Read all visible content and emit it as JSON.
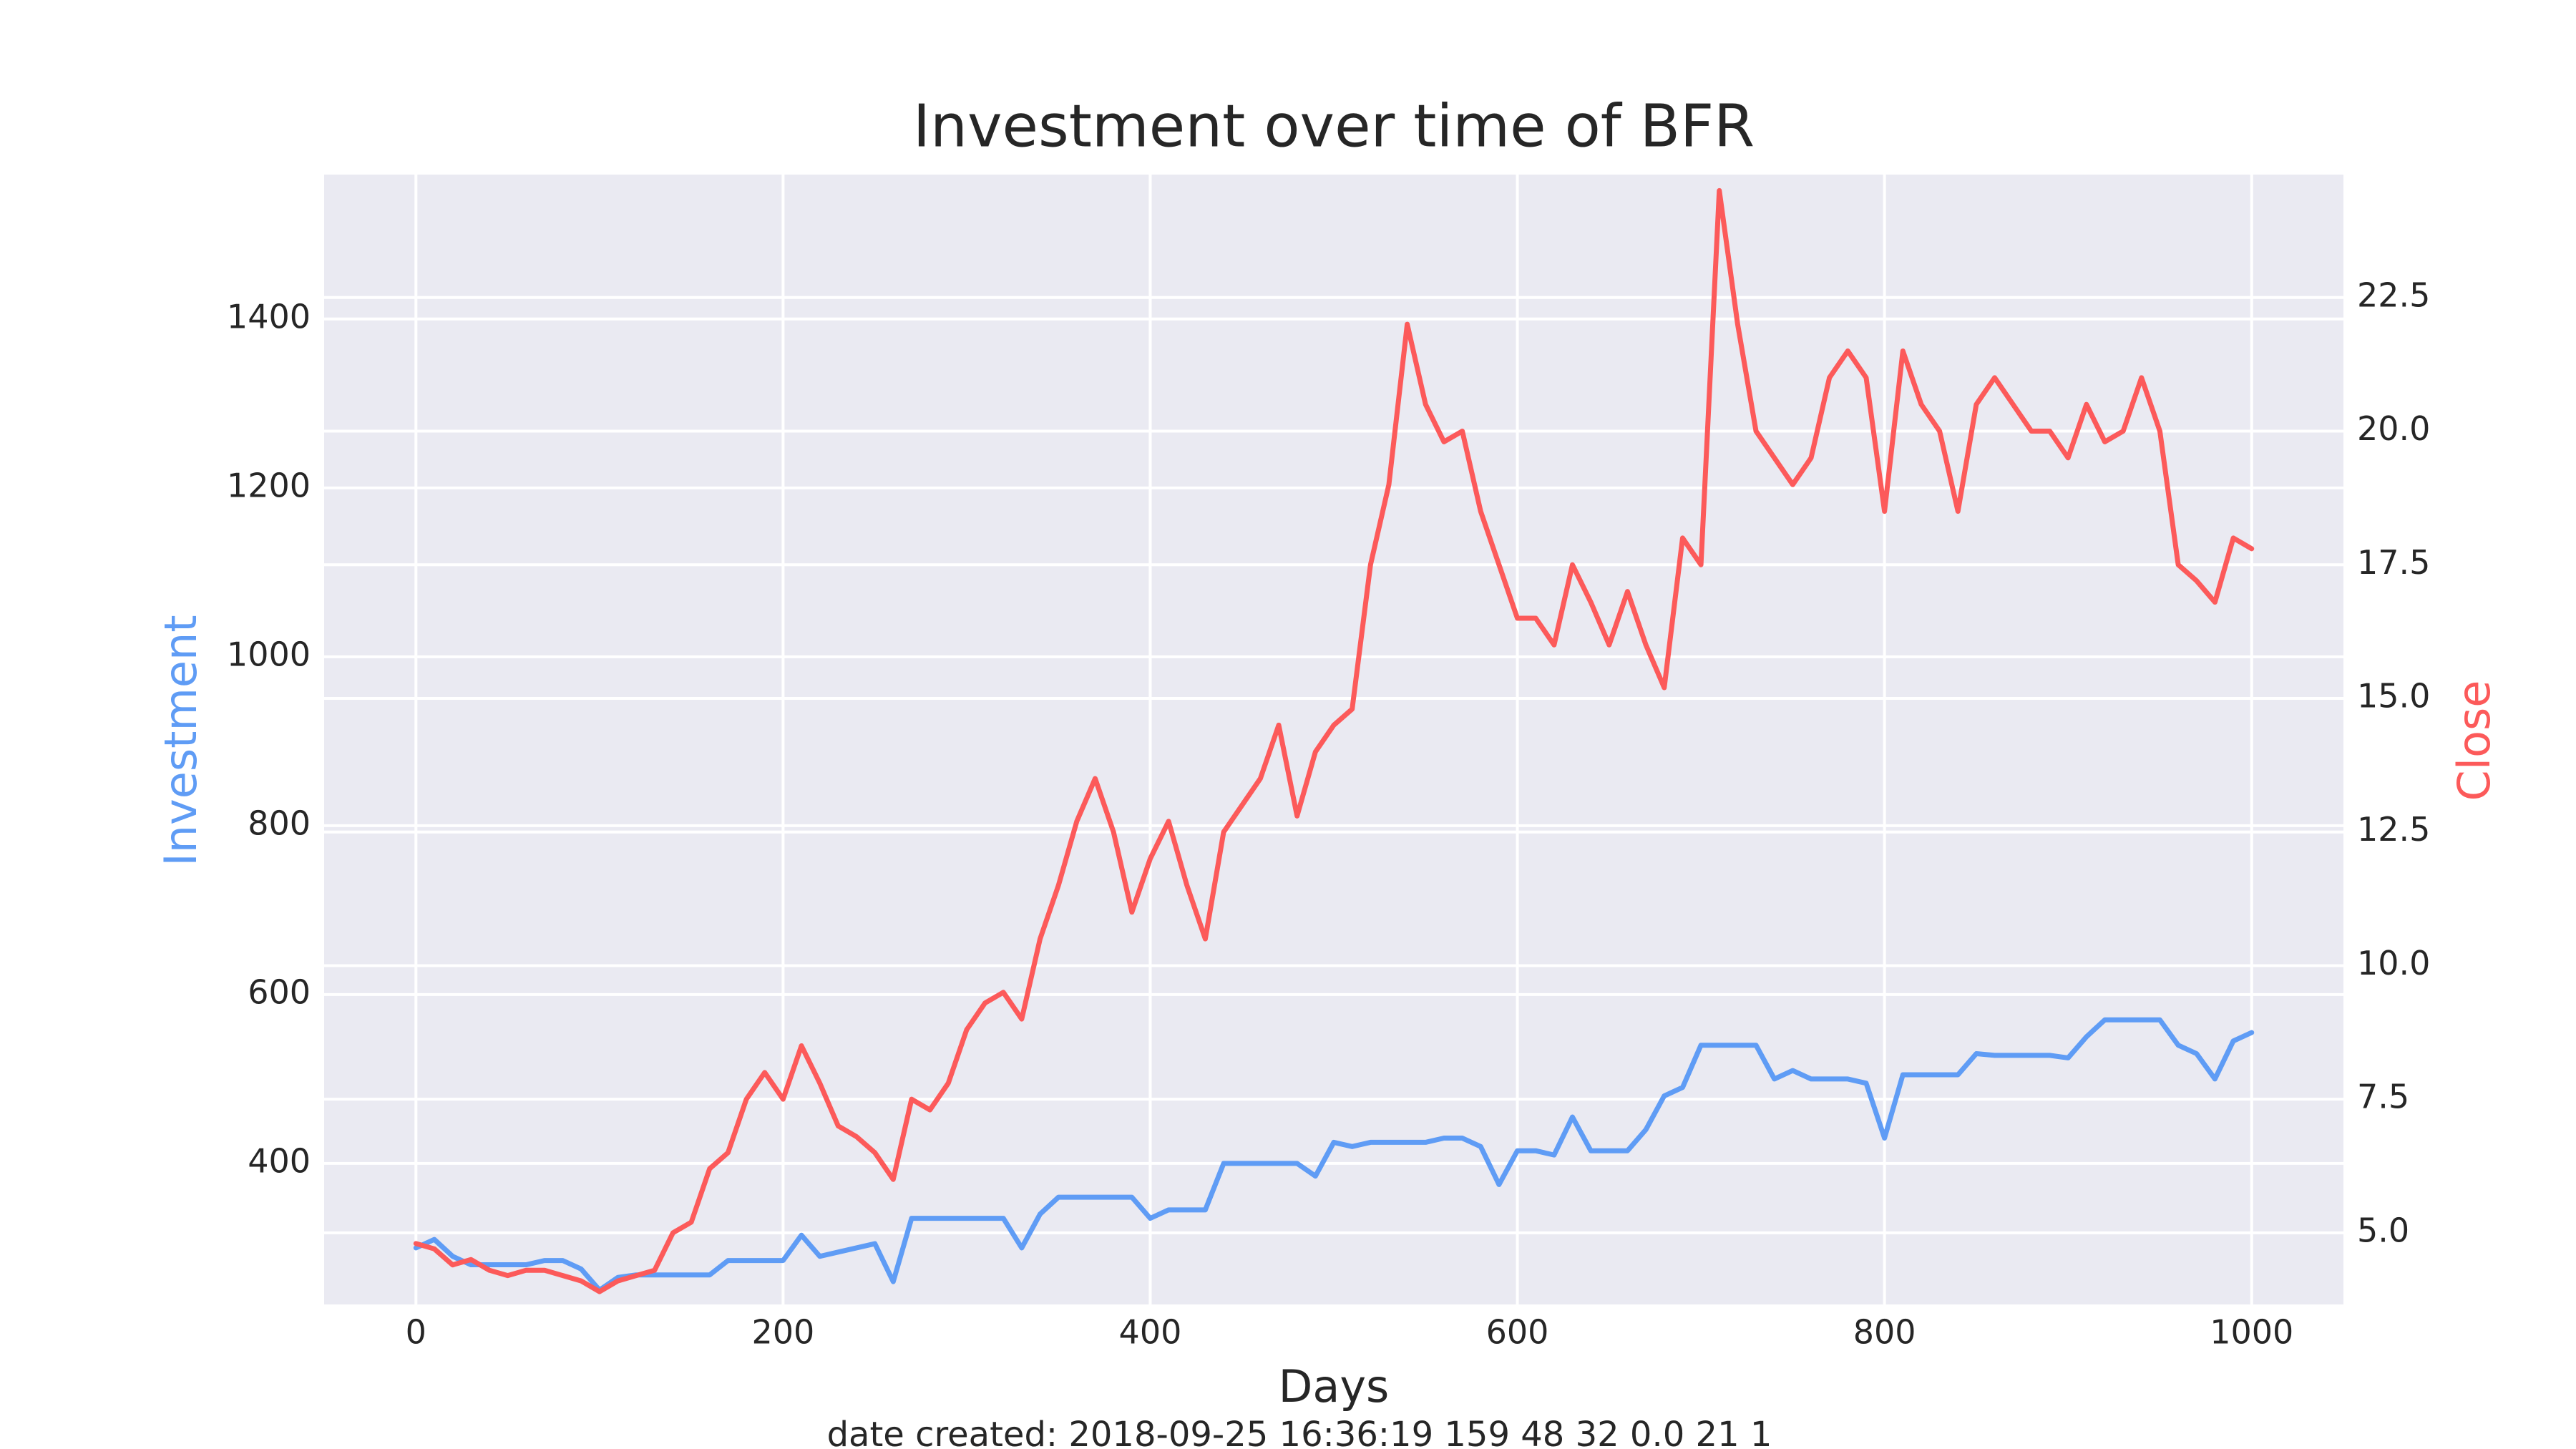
{
  "chart_data": {
    "type": "line",
    "title": "Investment over time of BFR",
    "xlabel": "Days",
    "ylabel": "Investment",
    "y2label": "Close",
    "footer": "date created: 2018-09-25 16:36:19 159 48 32 0.0 21 1",
    "grid": true,
    "xlim": [
      -50,
      1050
    ],
    "ylim": [
      233,
      1571
    ],
    "y2lim": [
      3.66,
      24.8
    ],
    "xticks": [
      0,
      200,
      400,
      600,
      800,
      1000
    ],
    "yticks": [
      400,
      600,
      800,
      1000,
      1200,
      1400
    ],
    "y2ticks": [
      {
        "value": 5,
        "label": "5.0"
      },
      7.5,
      {
        "value": 10,
        "label": "10.0"
      },
      12.5,
      {
        "value": 15,
        "label": "15.0"
      },
      17.5,
      {
        "value": 20,
        "label": "20.0"
      },
      22.5
    ],
    "x": [
      0,
      10,
      20,
      30,
      40,
      50,
      60,
      70,
      80,
      90,
      100,
      110,
      120,
      130,
      140,
      150,
      160,
      170,
      180,
      190,
      200,
      210,
      220,
      230,
      240,
      250,
      260,
      270,
      280,
      290,
      300,
      310,
      320,
      330,
      340,
      350,
      360,
      370,
      380,
      390,
      400,
      410,
      420,
      430,
      440,
      450,
      460,
      470,
      480,
      490,
      500,
      510,
      520,
      530,
      540,
      550,
      560,
      570,
      580,
      590,
      600,
      610,
      620,
      630,
      640,
      650,
      660,
      670,
      680,
      690,
      700,
      710,
      720,
      730,
      740,
      750,
      760,
      770,
      780,
      790,
      800,
      810,
      820,
      830,
      840,
      850,
      860,
      870,
      880,
      890,
      900,
      910,
      920,
      930,
      940,
      950,
      960,
      970,
      980,
      990,
      1000
    ],
    "series": [
      {
        "name": "Investment",
        "color": "#5f9cf5",
        "axis": "y",
        "values": [
          300,
          310,
          290,
          280,
          280,
          280,
          280,
          285,
          285,
          275,
          250,
          265,
          268,
          268,
          268,
          268,
          268,
          285,
          285,
          285,
          285,
          315,
          290,
          295,
          300,
          305,
          260,
          335,
          335,
          335,
          335,
          335,
          335,
          300,
          340,
          360,
          360,
          360,
          360,
          360,
          335,
          345,
          345,
          345,
          400,
          400,
          400,
          400,
          400,
          385,
          425,
          420,
          425,
          425,
          425,
          425,
          430,
          430,
          420,
          375,
          415,
          415,
          410,
          455,
          415,
          415,
          415,
          440,
          480,
          490,
          540,
          540,
          540,
          540,
          500,
          510,
          500,
          500,
          500,
          495,
          430,
          505,
          505,
          505,
          505,
          530,
          528,
          528,
          528,
          528,
          525,
          550,
          570,
          570,
          570,
          570,
          540,
          530,
          500,
          545,
          555
        ]
      },
      {
        "name": "Close",
        "color": "#fc5a5a",
        "axis": "y2",
        "values": [
          4.8,
          4.7,
          4.4,
          4.5,
          4.3,
          4.2,
          4.3,
          4.3,
          4.2,
          4.1,
          3.9,
          4.1,
          4.2,
          4.3,
          5.0,
          5.2,
          6.2,
          6.5,
          7.5,
          8.0,
          7.5,
          8.5,
          7.8,
          7.0,
          6.8,
          6.5,
          6.0,
          7.5,
          7.3,
          7.8,
          8.8,
          9.3,
          9.5,
          9.0,
          10.5,
          11.5,
          12.7,
          13.5,
          12.5,
          11.0,
          12.0,
          12.7,
          11.5,
          10.5,
          12.5,
          13.0,
          13.5,
          14.5,
          12.8,
          14.0,
          14.5,
          14.8,
          17.5,
          19.0,
          22.0,
          20.5,
          19.8,
          20.0,
          18.5,
          17.5,
          16.5,
          16.5,
          16.0,
          17.5,
          16.8,
          16.0,
          17.0,
          16.0,
          15.2,
          18.0,
          17.5,
          24.5,
          22.0,
          20.0,
          19.5,
          19.0,
          19.5,
          21.0,
          21.5,
          21.0,
          18.5,
          21.5,
          20.5,
          20.0,
          18.5,
          20.5,
          21.0,
          20.5,
          20.0,
          20.0,
          19.5,
          20.5,
          19.8,
          20.0,
          21.0,
          20.0,
          17.5,
          17.2,
          16.8,
          18.0,
          17.8
        ]
      }
    ]
  }
}
